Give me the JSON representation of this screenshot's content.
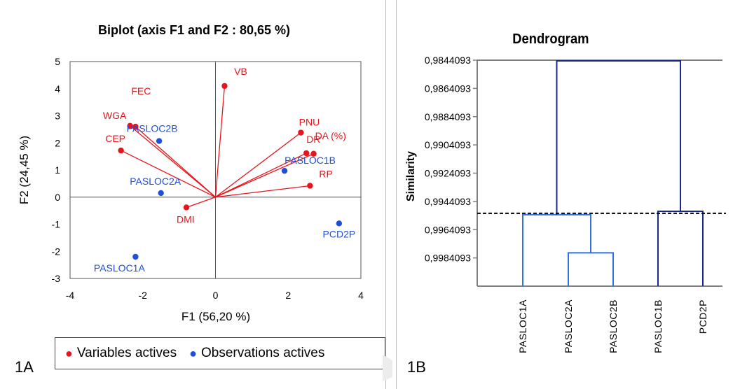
{
  "panel_a": {
    "tag": "1A",
    "legend": [
      {
        "label": "Variables actives",
        "color": "#e8141b"
      },
      {
        "label": "Observations actives",
        "color": "#1f4fd8"
      }
    ]
  },
  "panel_b": {
    "tag": "1B"
  },
  "chart_data": [
    {
      "type": "scatter",
      "title": "Biplot (axis F1 and  F2 : 80,65 %)",
      "xlabel": "F1 (56,20 %)",
      "ylabel": "F2 (24,45 %)",
      "xlim": [
        -4,
        4
      ],
      "ylim": [
        -3,
        5
      ],
      "xticks": [
        "-4",
        "-2",
        "0",
        "2",
        "4"
      ],
      "yticks": [
        "-3",
        "-2",
        "-1",
        "0",
        "1",
        "2",
        "3",
        "4",
        "5"
      ],
      "grid": false,
      "legend_position": "bottom",
      "series": [
        {
          "name": "Variables actives",
          "color": "#e8141b",
          "points": [
            {
              "label": "VB",
              "x": 0.25,
              "y": 4.1
            },
            {
              "label": "FEC",
              "x": -2.2,
              "y": 2.6
            },
            {
              "label": "WGA",
              "x": -2.35,
              "y": 2.63
            },
            {
              "label": "CEP",
              "x": -2.6,
              "y": 1.72
            },
            {
              "label": "PNU",
              "x": 2.35,
              "y": 2.38
            },
            {
              "label": "DA (%)",
              "x": 2.7,
              "y": 1.6
            },
            {
              "label": "DR",
              "x": 2.5,
              "y": 1.62
            },
            {
              "label": "RP",
              "x": 2.6,
              "y": 0.42
            },
            {
              "label": "DMI",
              "x": -0.8,
              "y": -0.38
            }
          ]
        },
        {
          "name": "Observations actives",
          "color": "#1f4fd8",
          "points": [
            {
              "label": "PASLOC2B",
              "x": -1.55,
              "y": 2.07
            },
            {
              "label": "PASLOC1B",
              "x": 1.9,
              "y": 0.97
            },
            {
              "label": "PASLOC2A",
              "x": -1.5,
              "y": 0.15
            },
            {
              "label": "PCD2P",
              "x": 3.4,
              "y": -0.97
            },
            {
              "label": "PASLOC1A",
              "x": -2.2,
              "y": -2.2
            }
          ]
        }
      ]
    },
    {
      "type": "dendrogram",
      "title": "Dendrogram",
      "ylabel": "Similarity",
      "yticks": [
        "0,9844093",
        "0,9864093",
        "0,9884093",
        "0,9904093",
        "0,9924093",
        "0,9944093",
        "0,9964093",
        "0,9984093"
      ],
      "ylim": [
        0.9844093,
        1.0004093
      ],
      "leaves": [
        "PASLOC1A",
        "PASLOC2A",
        "PASLOC2B",
        "PASLOC1B",
        "PCD2P"
      ],
      "merges": [
        {
          "left": "PASLOC2A",
          "right": "PASLOC2B",
          "similarity": 0.99805,
          "color": "#2f6fe8"
        },
        {
          "left": "PASLOC1A",
          "right": "PASLOC2A+PASLOC2B",
          "similarity": 0.99535,
          "color": "#2f6fe8"
        },
        {
          "left": "PASLOC1B",
          "right": "PCD2P",
          "similarity": 0.99511,
          "color": "#1a2a8c"
        },
        {
          "left": "cluster1",
          "right": "cluster2",
          "similarity": 0.9844093,
          "color": "#1a2a8c"
        }
      ],
      "cutoff_similarity": 0.99525
    }
  ]
}
